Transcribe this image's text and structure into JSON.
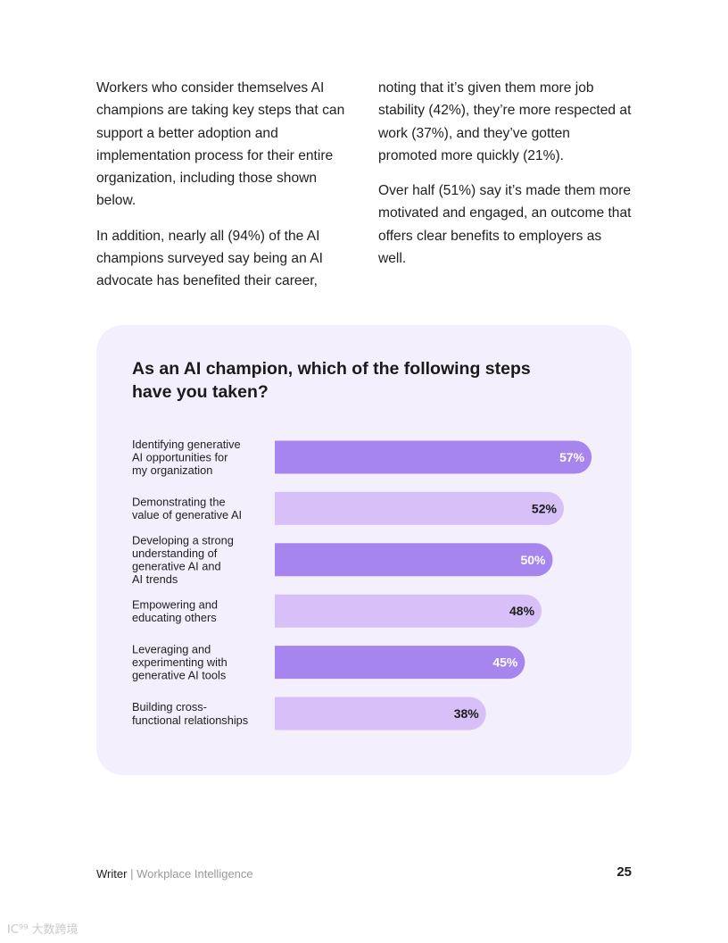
{
  "body_text": {
    "left": [
      "Workers who consider themselves AI champions are taking key steps that can support a better adoption and implementation process for their entire organization, including those shown below.",
      "In addition, nearly all (94%) of the AI champions surveyed say being an AI advocate has benefited their career,"
    ],
    "right": [
      "noting that it’s given them more job stability (42%), they’re more respected at work (37%), and they’ve gotten promoted more quickly (21%).",
      "Over half (51%) say it’s made them more motivated and engaged, an outcome that offers clear benefits to employers as well."
    ]
  },
  "chart_data": {
    "type": "bar",
    "orientation": "horizontal",
    "title": "As an AI champion, which of the following steps have you taken?",
    "categories": [
      [
        "Identifying generative",
        "AI opportunities for",
        "my organization"
      ],
      [
        "Demonstrating the",
        "value of generative AI"
      ],
      [
        "Developing a strong",
        "understanding of",
        "generative AI and",
        "AI trends"
      ],
      [
        "Empowering and",
        "educating others"
      ],
      [
        "Leveraging and",
        "experimenting with",
        "generative AI tools"
      ],
      [
        "Building cross-",
        "functional relationships"
      ]
    ],
    "values": [
      57,
      52,
      50,
      48,
      45,
      38
    ],
    "value_labels": [
      "57%",
      "52%",
      "50%",
      "48%",
      "45%",
      "38%"
    ],
    "unit": "%",
    "colors": [
      "#a785ee",
      "#d7bff7"
    ],
    "label_colors": [
      "#ffffff",
      "#1a1a1a"
    ],
    "grid": false,
    "legend": "none"
  },
  "footer": {
    "brand": "Writer",
    "separator": "|",
    "subtitle": "Workplace Intelligence",
    "page_number": "25"
  },
  "watermark": "IC⁹⁹ 大数跨境"
}
